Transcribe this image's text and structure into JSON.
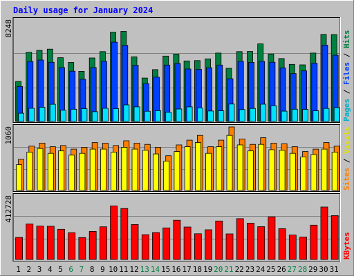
{
  "chart_data": [
    {
      "type": "bar",
      "title": "Daily usage for January 2024",
      "ymax_label": "8248",
      "ylim": [
        0,
        8248
      ],
      "categories": [
        "1",
        "2",
        "3",
        "4",
        "5",
        "6",
        "7",
        "8",
        "9",
        "10",
        "11",
        "12",
        "13",
        "14",
        "15",
        "16",
        "17",
        "18",
        "19",
        "20",
        "21",
        "22",
        "23",
        "24",
        "25",
        "26",
        "27",
        "28",
        "29",
        "30",
        "31"
      ],
      "weekend_days": [
        "6",
        "7",
        "13",
        "14",
        "20",
        "21",
        "27",
        "28"
      ],
      "series": [
        {
          "name": "Hits",
          "color": "#008040",
          "values": [
            3570,
            6170,
            6340,
            6450,
            5690,
            5260,
            4470,
            5660,
            6230,
            7960,
            8030,
            5770,
            3870,
            4620,
            5830,
            6000,
            5400,
            5430,
            5580,
            6100,
            4740,
            6230,
            6240,
            6920,
            6020,
            5610,
            5090,
            5050,
            6100,
            7760,
            7750
          ]
        },
        {
          "name": "Files",
          "color": "#0040ff",
          "values": [
            3120,
            5340,
            5480,
            5280,
            4810,
            4480,
            3770,
            4810,
            5360,
            7070,
            6780,
            5010,
            3380,
            3950,
            5030,
            5170,
            4680,
            4650,
            4790,
            5030,
            3810,
            5360,
            5270,
            5360,
            5280,
            4780,
            4270,
            4510,
            5190,
            6800,
            5910
          ]
        },
        {
          "name": "Pages",
          "color": "#00e0ff",
          "values": [
            730,
            1170,
            1270,
            1530,
            1000,
            1090,
            1140,
            870,
            1170,
            1140,
            1480,
            1300,
            910,
            960,
            820,
            1110,
            1300,
            1200,
            930,
            950,
            1550,
            1060,
            1160,
            1540,
            1400,
            920,
            1090,
            1080,
            950,
            1160,
            1230
          ]
        }
      ]
    },
    {
      "type": "bar",
      "ymax_label": "1060",
      "ylim": [
        0,
        1060
      ],
      "categories": [
        "1",
        "2",
        "3",
        "4",
        "5",
        "6",
        "7",
        "8",
        "9",
        "10",
        "11",
        "12",
        "13",
        "14",
        "15",
        "16",
        "17",
        "18",
        "19",
        "20",
        "21",
        "22",
        "23",
        "24",
        "25",
        "26",
        "27",
        "28",
        "29",
        "30",
        "31"
      ],
      "series": [
        {
          "name": "Visits",
          "color": "#ff8000",
          "values": [
            520,
            740,
            790,
            730,
            750,
            690,
            720,
            800,
            790,
            750,
            830,
            790,
            770,
            720,
            580,
            760,
            840,
            920,
            730,
            840,
            1060,
            860,
            770,
            880,
            790,
            780,
            730,
            650,
            690,
            800,
            740
          ]
        },
        {
          "name": "Sites",
          "color": "#ffff00",
          "values": [
            430,
            640,
            700,
            620,
            660,
            590,
            620,
            690,
            690,
            640,
            720,
            690,
            670,
            610,
            490,
            650,
            730,
            800,
            620,
            730,
            920,
            760,
            660,
            770,
            680,
            670,
            620,
            560,
            600,
            690,
            640
          ]
        }
      ]
    },
    {
      "type": "bar",
      "ymax_label": "412728",
      "ylim": [
        0,
        412728
      ],
      "categories": [
        "1",
        "2",
        "3",
        "4",
        "5",
        "6",
        "7",
        "8",
        "9",
        "10",
        "11",
        "12",
        "13",
        "14",
        "15",
        "16",
        "17",
        "18",
        "19",
        "20",
        "21",
        "22",
        "23",
        "24",
        "25",
        "26",
        "27",
        "28",
        "29",
        "30",
        "31"
      ],
      "series": [
        {
          "name": "KBytes",
          "color": "#ff0000",
          "values": [
            143000,
            230000,
            217000,
            216000,
            196000,
            174000,
            142000,
            182000,
            212000,
            348000,
            331000,
            227000,
            161000,
            175000,
            205000,
            255000,
            211000,
            167000,
            193000,
            250000,
            166000,
            265000,
            236000,
            213000,
            277000,
            200000,
            159000,
            146000,
            223000,
            341000,
            285000
          ]
        }
      ]
    }
  ]
}
